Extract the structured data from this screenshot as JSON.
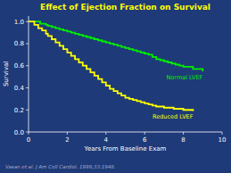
{
  "chart_data": {
    "type": "line",
    "line_style": "step",
    "title": "Effect of Ejection Fraction on Survival",
    "x_label": "Years From Baseline Exam",
    "y_label": "Survival",
    "annotations": [
      "Vasan et al. J Am Coll Cardiol. 1999;33:1948."
    ],
    "xlim": [
      0,
      10
    ],
    "ylim": [
      0.0,
      1.05
    ],
    "xticks": [
      0,
      2,
      4,
      6,
      8,
      10
    ],
    "yticks": [
      {
        "value": 0.0,
        "label": "0.0"
      },
      0.2,
      0.4,
      0.6,
      0.8,
      {
        "value": 1.0,
        "label": "1.0"
      }
    ],
    "series": [
      {
        "name": "Normal LVEF",
        "color": "#00ee00",
        "x": [
          0,
          0.3,
          0.6,
          0.9,
          1.0,
          1.2,
          1.4,
          1.6,
          1.8,
          2.0,
          2.2,
          2.4,
          2.6,
          2.8,
          3.0,
          3.2,
          3.4,
          3.6,
          3.8,
          4.0,
          4.2,
          4.4,
          4.6,
          4.8,
          5.0,
          5.2,
          5.4,
          5.6,
          5.8,
          6.0,
          6.2,
          6.4,
          6.6,
          6.8,
          7.0,
          7.2,
          7.4,
          7.6,
          7.8,
          8.0,
          8.5,
          9.0
        ],
        "values": [
          1.0,
          1.0,
          0.98,
          0.97,
          0.96,
          0.95,
          0.94,
          0.93,
          0.92,
          0.91,
          0.9,
          0.89,
          0.88,
          0.87,
          0.86,
          0.85,
          0.84,
          0.83,
          0.82,
          0.81,
          0.8,
          0.79,
          0.78,
          0.77,
          0.76,
          0.75,
          0.74,
          0.73,
          0.72,
          0.71,
          0.7,
          0.68,
          0.66,
          0.65,
          0.64,
          0.63,
          0.62,
          0.61,
          0.6,
          0.59,
          0.57,
          0.55
        ]
      },
      {
        "name": "Reduced LVEF",
        "color": "#ffff00",
        "x": [
          0,
          0.3,
          0.5,
          0.7,
          0.9,
          1.0,
          1.2,
          1.4,
          1.6,
          1.8,
          2.0,
          2.2,
          2.4,
          2.6,
          2.8,
          3.0,
          3.2,
          3.4,
          3.6,
          3.8,
          4.0,
          4.2,
          4.4,
          4.6,
          4.8,
          5.0,
          5.2,
          5.4,
          5.6,
          5.8,
          6.0,
          6.2,
          6.4,
          6.6,
          7.0,
          7.5,
          8.0,
          8.5
        ],
        "values": [
          1.0,
          0.97,
          0.94,
          0.92,
          0.89,
          0.87,
          0.84,
          0.81,
          0.78,
          0.75,
          0.72,
          0.69,
          0.66,
          0.63,
          0.6,
          0.57,
          0.54,
          0.51,
          0.48,
          0.45,
          0.42,
          0.39,
          0.37,
          0.35,
          0.33,
          0.31,
          0.3,
          0.29,
          0.28,
          0.27,
          0.26,
          0.25,
          0.24,
          0.23,
          0.22,
          0.21,
          0.2,
          0.19
        ]
      }
    ]
  }
}
